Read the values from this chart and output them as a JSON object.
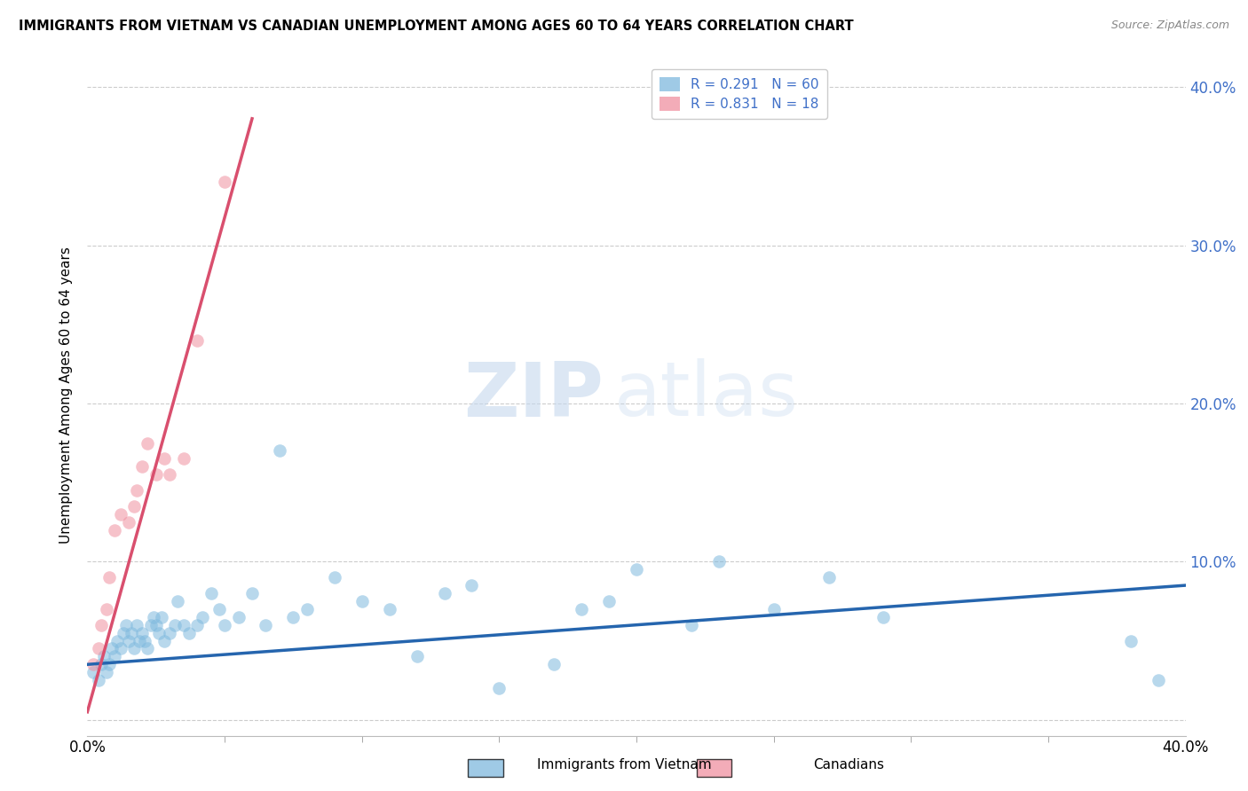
{
  "title": "IMMIGRANTS FROM VIETNAM VS CANADIAN UNEMPLOYMENT AMONG AGES 60 TO 64 YEARS CORRELATION CHART",
  "source": "Source: ZipAtlas.com",
  "ylabel": "Unemployment Among Ages 60 to 64 years",
  "ytick_labels": [
    "",
    "10.0%",
    "20.0%",
    "30.0%",
    "40.0%"
  ],
  "yticks": [
    0.0,
    0.1,
    0.2,
    0.3,
    0.4
  ],
  "xticks_minor": [
    0.05,
    0.1,
    0.15,
    0.2,
    0.25,
    0.3,
    0.35
  ],
  "xlim": [
    0.0,
    0.4
  ],
  "ylim": [
    -0.01,
    0.42
  ],
  "watermark_zip": "ZIP",
  "watermark_atlas": "atlas",
  "blue_scatter_x": [
    0.002,
    0.004,
    0.005,
    0.006,
    0.007,
    0.008,
    0.009,
    0.01,
    0.011,
    0.012,
    0.013,
    0.014,
    0.015,
    0.016,
    0.017,
    0.018,
    0.019,
    0.02,
    0.021,
    0.022,
    0.023,
    0.024,
    0.025,
    0.026,
    0.027,
    0.028,
    0.03,
    0.032,
    0.033,
    0.035,
    0.037,
    0.04,
    0.042,
    0.045,
    0.048,
    0.05,
    0.055,
    0.06,
    0.065,
    0.07,
    0.075,
    0.08,
    0.09,
    0.1,
    0.11,
    0.12,
    0.13,
    0.14,
    0.15,
    0.17,
    0.18,
    0.19,
    0.2,
    0.22,
    0.23,
    0.25,
    0.27,
    0.29,
    0.38,
    0.39
  ],
  "blue_scatter_y": [
    0.03,
    0.025,
    0.035,
    0.04,
    0.03,
    0.035,
    0.045,
    0.04,
    0.05,
    0.045,
    0.055,
    0.06,
    0.05,
    0.055,
    0.045,
    0.06,
    0.05,
    0.055,
    0.05,
    0.045,
    0.06,
    0.065,
    0.06,
    0.055,
    0.065,
    0.05,
    0.055,
    0.06,
    0.075,
    0.06,
    0.055,
    0.06,
    0.065,
    0.08,
    0.07,
    0.06,
    0.065,
    0.08,
    0.06,
    0.17,
    0.065,
    0.07,
    0.09,
    0.075,
    0.07,
    0.04,
    0.08,
    0.085,
    0.02,
    0.035,
    0.07,
    0.075,
    0.095,
    0.06,
    0.1,
    0.07,
    0.09,
    0.065,
    0.05,
    0.025
  ],
  "pink_scatter_x": [
    0.002,
    0.004,
    0.005,
    0.007,
    0.008,
    0.01,
    0.012,
    0.015,
    0.017,
    0.018,
    0.02,
    0.022,
    0.025,
    0.028,
    0.03,
    0.035,
    0.04,
    0.05
  ],
  "pink_scatter_y": [
    0.035,
    0.045,
    0.06,
    0.07,
    0.09,
    0.12,
    0.13,
    0.125,
    0.135,
    0.145,
    0.16,
    0.175,
    0.155,
    0.165,
    0.155,
    0.165,
    0.24,
    0.34
  ],
  "blue_line_x": [
    0.0,
    0.4
  ],
  "blue_line_y": [
    0.035,
    0.085
  ],
  "pink_line_x": [
    0.0,
    0.06
  ],
  "pink_line_y": [
    0.005,
    0.38
  ],
  "scatter_alpha": 0.55,
  "scatter_size": 110,
  "blue_color": "#7fb9de",
  "pink_color": "#f090a0",
  "blue_line_color": "#2565ae",
  "pink_line_color": "#d94f6e",
  "grid_color": "#cccccc",
  "background_color": "#ffffff",
  "right_ytick_color": "#4070c8",
  "legend_label_blue": "R = 0.291   N = 60",
  "legend_label_pink": "R = 0.831   N = 18",
  "legend_color_text": "#4070c8",
  "bottom_legend_blue_label": "Immigrants from Vietnam",
  "bottom_legend_pink_label": "Canadians"
}
